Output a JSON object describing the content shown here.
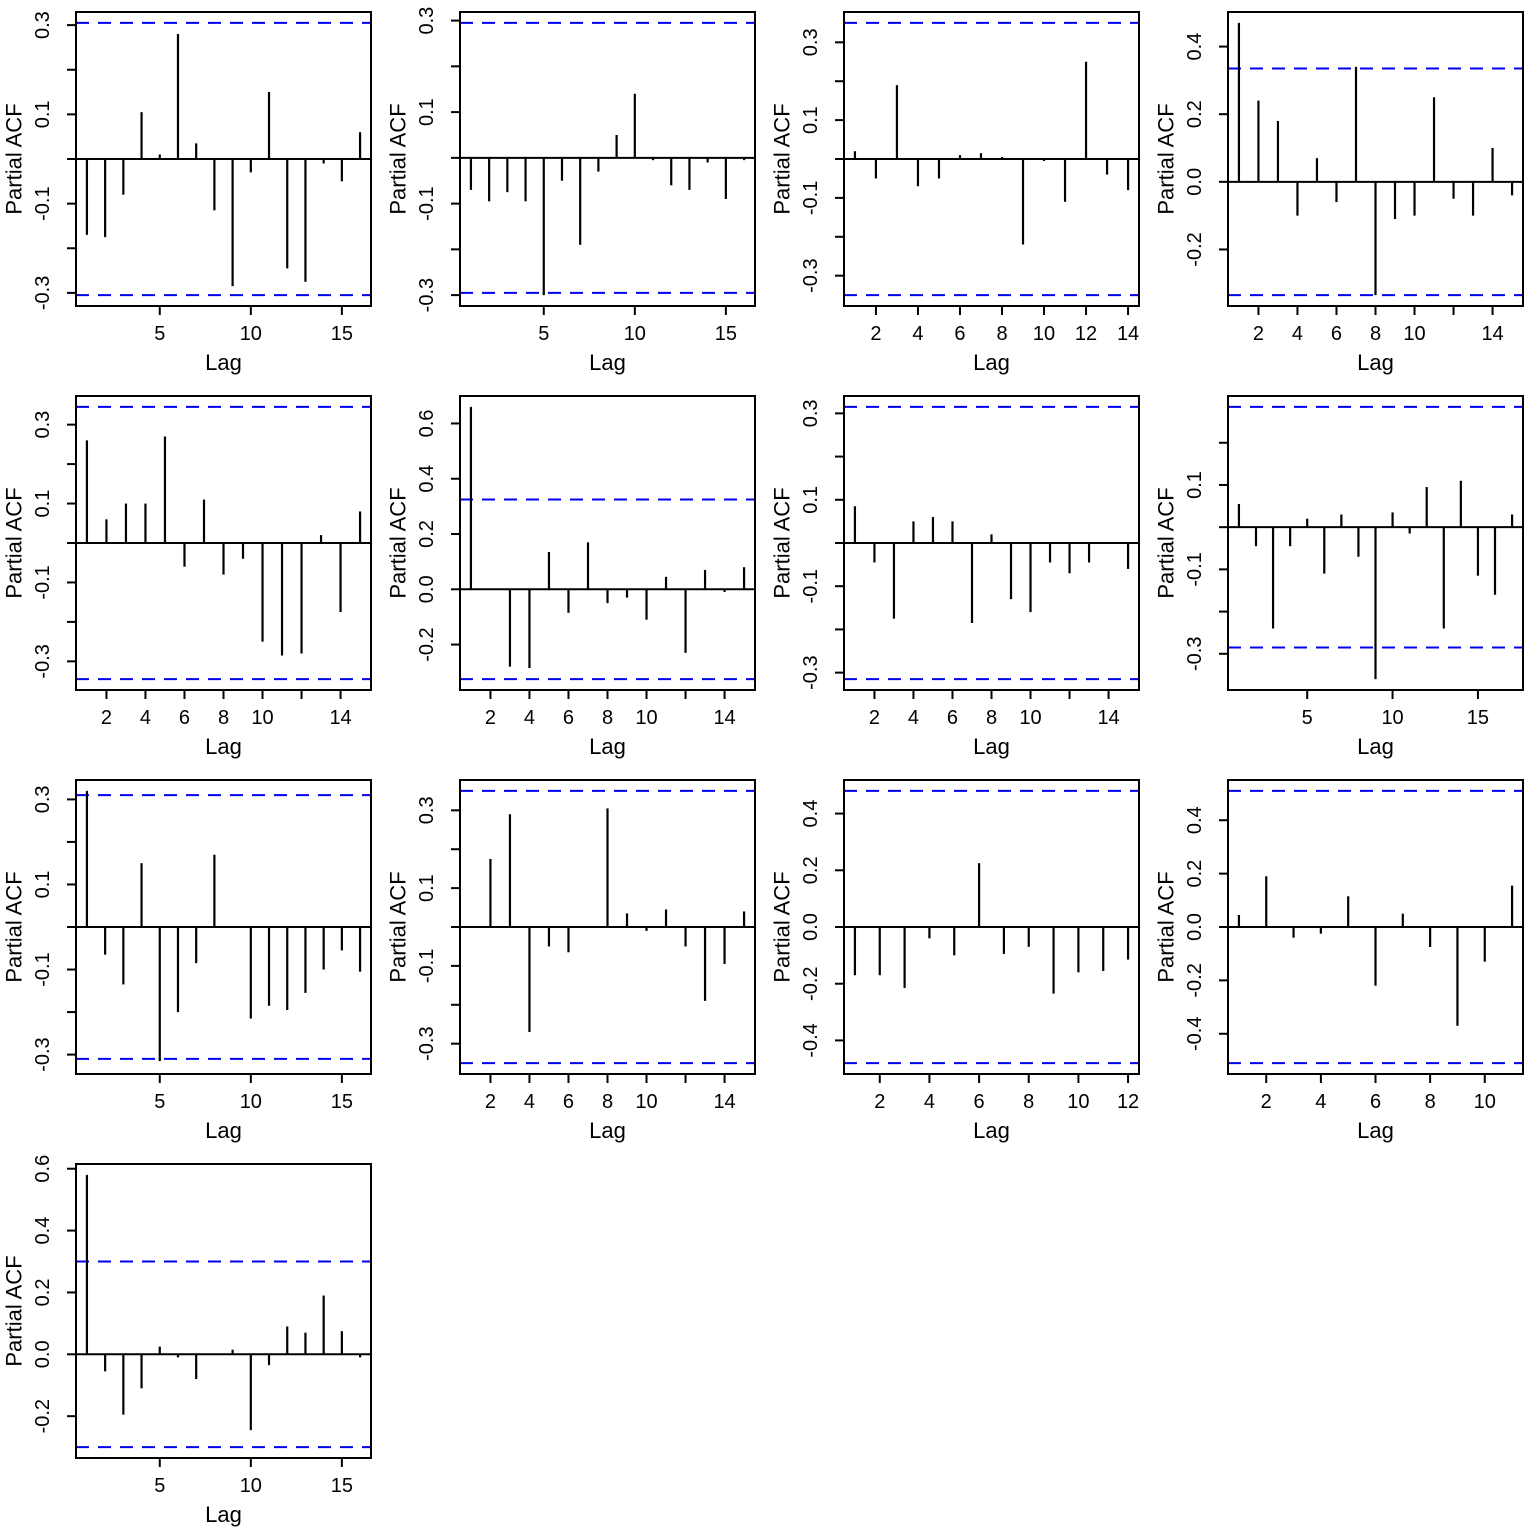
{
  "figure": {
    "background": "#ffffff",
    "bar_color": "#000000",
    "axis_color": "#000000",
    "text_color": "#000000",
    "band_color": "#0000EE",
    "band_style": "dashed"
  },
  "layout": {
    "rows": 4,
    "cols": 4,
    "panel_count": 13,
    "legend": "none",
    "grid": "off"
  },
  "chart_data": [
    {
      "type": "bar",
      "subtype": "pacf-lollipop",
      "title": "",
      "ylabel": "Partial ACF",
      "xlabel": "Lag",
      "conf_band": 0.305,
      "ylim": [
        -0.305,
        0.305
      ],
      "yticks": [
        0.3,
        0.2,
        0.1,
        0,
        -0.1,
        -0.2,
        -0.3
      ],
      "ytick_labels": [
        "0.3",
        "",
        "0.1",
        "",
        "-0.1",
        "",
        "-0.3"
      ],
      "xticks": [
        5,
        10,
        15
      ],
      "xtick_labels": [
        "5",
        "10",
        "15"
      ],
      "x": [
        1,
        2,
        3,
        4,
        5,
        6,
        7,
        8,
        9,
        10,
        11,
        12,
        13,
        14,
        15,
        16
      ],
      "values": [
        -0.17,
        -0.175,
        -0.08,
        0.105,
        0.01,
        0.28,
        0.035,
        -0.115,
        -0.285,
        -0.03,
        0.15,
        -0.245,
        -0.275,
        -0.01,
        -0.05,
        0.06
      ]
    },
    {
      "type": "bar",
      "subtype": "pacf-lollipop",
      "title": "",
      "ylabel": "Partial ACF",
      "xlabel": "Lag",
      "conf_band": 0.295,
      "ylim": [
        -0.3,
        0.295
      ],
      "yticks": [
        0.3,
        0.2,
        0.1,
        0,
        -0.1,
        -0.2,
        -0.3
      ],
      "ytick_labels": [
        "0.3",
        "",
        "0.1",
        "",
        "-0.1",
        "",
        "-0.3"
      ],
      "xticks": [
        5,
        10,
        15
      ],
      "xtick_labels": [
        "5",
        "10",
        "15"
      ],
      "x": [
        1,
        2,
        3,
        4,
        5,
        6,
        7,
        8,
        9,
        10,
        11,
        12,
        13,
        14,
        15,
        16
      ],
      "values": [
        -0.07,
        -0.095,
        -0.075,
        -0.095,
        -0.3,
        -0.05,
        -0.19,
        -0.03,
        0.05,
        0.14,
        -0.005,
        -0.06,
        -0.07,
        -0.01,
        -0.09,
        -0.005
      ]
    },
    {
      "type": "bar",
      "subtype": "pacf-lollipop",
      "title": "",
      "ylabel": "Partial ACF",
      "xlabel": "Lag",
      "conf_band": 0.35,
      "ylim": [
        -0.35,
        0.35
      ],
      "yticks": [
        0.3,
        0.2,
        0.1,
        0,
        -0.1,
        -0.2,
        -0.3
      ],
      "ytick_labels": [
        "0.3",
        "",
        "0.1",
        "",
        "-0.1",
        "",
        "-0.3"
      ],
      "xticks": [
        2,
        4,
        6,
        8,
        10,
        12,
        14
      ],
      "xtick_labels": [
        "2",
        "4",
        "6",
        "8",
        "10",
        "12",
        "14"
      ],
      "x": [
        1,
        2,
        3,
        4,
        5,
        6,
        7,
        8,
        9,
        10,
        11,
        12,
        13,
        14
      ],
      "values": [
        0.02,
        -0.05,
        0.19,
        -0.07,
        -0.05,
        0.01,
        0.015,
        0.005,
        -0.22,
        -0.005,
        -0.11,
        0.25,
        -0.04,
        -0.08
      ]
    },
    {
      "type": "bar",
      "subtype": "pacf-lollipop",
      "title": "",
      "ylabel": "Partial ACF",
      "xlabel": "Lag",
      "conf_band": 0.335,
      "ylim": [
        -0.335,
        0.47
      ],
      "yticks": [
        0.4,
        0.2,
        0.0,
        -0.2
      ],
      "ytick_labels": [
        "0.4",
        "0.2",
        "0.0",
        "-0.2"
      ],
      "xticks": [
        2,
        4,
        6,
        8,
        10,
        12,
        14
      ],
      "xtick_labels": [
        "2",
        "4",
        "6",
        "8",
        "10",
        "",
        "14"
      ],
      "x": [
        1,
        2,
        3,
        4,
        5,
        6,
        7,
        8,
        9,
        10,
        11,
        12,
        13,
        14,
        15
      ],
      "values": [
        0.47,
        0.24,
        0.18,
        -0.1,
        0.07,
        -0.06,
        0.34,
        -0.335,
        -0.11,
        -0.1,
        0.25,
        -0.05,
        -0.1,
        0.1,
        -0.04
      ]
    },
    {
      "type": "bar",
      "subtype": "pacf-lollipop",
      "title": "",
      "ylabel": "Partial ACF",
      "xlabel": "Lag",
      "conf_band": 0.345,
      "ylim": [
        -0.345,
        0.345
      ],
      "yticks": [
        0.3,
        0.2,
        0.1,
        0,
        -0.1,
        -0.2,
        -0.3
      ],
      "ytick_labels": [
        "0.3",
        "",
        "0.1",
        "",
        "-0.1",
        "",
        "-0.3"
      ],
      "xticks": [
        2,
        4,
        6,
        8,
        10,
        12,
        14
      ],
      "xtick_labels": [
        "2",
        "4",
        "6",
        "8",
        "10",
        "",
        "14"
      ],
      "x": [
        1,
        2,
        3,
        4,
        5,
        6,
        7,
        8,
        9,
        10,
        11,
        12,
        13,
        14,
        15
      ],
      "values": [
        0.26,
        0.06,
        0.1,
        0.1,
        0.27,
        -0.06,
        0.11,
        -0.08,
        -0.04,
        -0.25,
        -0.285,
        -0.28,
        0.02,
        -0.175,
        0.08
      ]
    },
    {
      "type": "bar",
      "subtype": "pacf-lollipop",
      "title": "",
      "ylabel": "Partial ACF",
      "xlabel": "Lag",
      "conf_band": 0.325,
      "ylim": [
        -0.325,
        0.66
      ],
      "yticks": [
        0.6,
        0.4,
        0.2,
        0.0,
        -0.2
      ],
      "ytick_labels": [
        "0.6",
        "0.4",
        "0.2",
        "0.0",
        "-0.2"
      ],
      "xticks": [
        2,
        4,
        6,
        8,
        10,
        12,
        14
      ],
      "xtick_labels": [
        "2",
        "4",
        "6",
        "8",
        "10",
        "",
        "14"
      ],
      "x": [
        1,
        2,
        3,
        4,
        5,
        6,
        7,
        8,
        9,
        10,
        11,
        12,
        13,
        14,
        15
      ],
      "values": [
        0.66,
        0,
        -0.28,
        -0.285,
        0.135,
        -0.085,
        0.17,
        -0.05,
        -0.03,
        -0.11,
        0.045,
        -0.23,
        0.07,
        -0.01,
        0.08
      ]
    },
    {
      "type": "bar",
      "subtype": "pacf-lollipop",
      "title": "",
      "ylabel": "Partial ACF",
      "xlabel": "Lag",
      "conf_band": 0.315,
      "ylim": [
        -0.315,
        0.315
      ],
      "yticks": [
        0.3,
        0.2,
        0.1,
        0,
        -0.1,
        -0.2,
        -0.3
      ],
      "ytick_labels": [
        "0.3",
        "",
        "0.1",
        "",
        "-0.1",
        "",
        "-0.3"
      ],
      "xticks": [
        2,
        4,
        6,
        8,
        10,
        12,
        14
      ],
      "xtick_labels": [
        "2",
        "4",
        "6",
        "8",
        "10",
        "",
        "14"
      ],
      "x": [
        1,
        2,
        3,
        4,
        5,
        6,
        7,
        8,
        9,
        10,
        11,
        12,
        13,
        14,
        15
      ],
      "values": [
        0.085,
        -0.045,
        -0.175,
        0.05,
        0.06,
        0.05,
        -0.185,
        0.02,
        -0.13,
        -0.16,
        -0.045,
        -0.07,
        -0.045,
        0,
        -0.06
      ]
    },
    {
      "type": "bar",
      "subtype": "pacf-lollipop",
      "title": "",
      "ylabel": "Partial ACF",
      "xlabel": "Lag",
      "conf_band": 0.285,
      "ylim": [
        -0.36,
        0.285
      ],
      "yticks": [
        0.2,
        0.1,
        0,
        -0.1,
        -0.2,
        -0.3
      ],
      "ytick_labels": [
        "",
        "0.1",
        "",
        "-0.1",
        "",
        "-0.3"
      ],
      "xticks": [
        5,
        10,
        15
      ],
      "xtick_labels": [
        "5",
        "10",
        "15"
      ],
      "x": [
        1,
        2,
        3,
        4,
        5,
        6,
        7,
        8,
        9,
        10,
        11,
        12,
        13,
        14,
        15,
        16,
        17
      ],
      "values": [
        0.055,
        -0.045,
        -0.24,
        -0.045,
        0.02,
        -0.11,
        0.03,
        -0.07,
        -0.36,
        0.035,
        -0.015,
        0.095,
        -0.24,
        0.11,
        -0.115,
        -0.16,
        0.03
      ]
    },
    {
      "type": "bar",
      "subtype": "pacf-lollipop",
      "title": "",
      "ylabel": "Partial ACF",
      "xlabel": "Lag",
      "conf_band": 0.31,
      "ylim": [
        -0.32,
        0.32
      ],
      "yticks": [
        0.3,
        0.2,
        0.1,
        0,
        -0.1,
        -0.2,
        -0.3
      ],
      "ytick_labels": [
        "0.3",
        "",
        "0.1",
        "",
        "-0.1",
        "",
        "-0.3"
      ],
      "xticks": [
        5,
        10,
        15
      ],
      "xtick_labels": [
        "5",
        "10",
        "15"
      ],
      "x": [
        1,
        2,
        3,
        4,
        5,
        6,
        7,
        8,
        9,
        10,
        11,
        12,
        13,
        14,
        15,
        16
      ],
      "values": [
        0.32,
        -0.065,
        -0.135,
        0.15,
        -0.315,
        -0.2,
        -0.085,
        0.17,
        0,
        -0.215,
        -0.185,
        -0.195,
        -0.155,
        -0.1,
        -0.055,
        -0.105
      ]
    },
    {
      "type": "bar",
      "subtype": "pacf-lollipop",
      "title": "",
      "ylabel": "Partial ACF",
      "xlabel": "Lag",
      "conf_band": 0.35,
      "ylim": [
        -0.35,
        0.35
      ],
      "yticks": [
        0.3,
        0.2,
        0.1,
        0,
        -0.1,
        -0.2,
        -0.3
      ],
      "ytick_labels": [
        "0.3",
        "",
        "0.1",
        "",
        "-0.1",
        "",
        "-0.3"
      ],
      "xticks": [
        2,
        4,
        6,
        8,
        10,
        12,
        14
      ],
      "xtick_labels": [
        "2",
        "4",
        "6",
        "8",
        "10",
        "",
        "14"
      ],
      "x": [
        1,
        2,
        3,
        4,
        5,
        6,
        7,
        8,
        9,
        10,
        11,
        12,
        13,
        14,
        15
      ],
      "values": [
        0,
        0.175,
        0.29,
        -0.27,
        -0.05,
        -0.065,
        0,
        0.305,
        0.035,
        -0.01,
        0.045,
        -0.05,
        -0.19,
        -0.095,
        0.04
      ]
    },
    {
      "type": "bar",
      "subtype": "pacf-lollipop",
      "title": "",
      "ylabel": "Partial ACF",
      "xlabel": "Lag",
      "conf_band": 0.48,
      "ylim": [
        -0.48,
        0.48
      ],
      "yticks": [
        0.4,
        0.2,
        0.0,
        -0.2,
        -0.4
      ],
      "ytick_labels": [
        "0.4",
        "0.2",
        "0.0",
        "-0.2",
        "-0.4"
      ],
      "xticks": [
        2,
        4,
        6,
        8,
        10,
        12
      ],
      "xtick_labels": [
        "2",
        "4",
        "6",
        "8",
        "10",
        "12"
      ],
      "x": [
        1,
        2,
        3,
        4,
        5,
        6,
        7,
        8,
        9,
        10,
        11,
        12
      ],
      "values": [
        -0.17,
        -0.17,
        -0.215,
        -0.04,
        -0.1,
        0.225,
        -0.095,
        -0.07,
        -0.235,
        -0.16,
        -0.155,
        -0.115
      ]
    },
    {
      "type": "bar",
      "subtype": "pacf-lollipop",
      "title": "",
      "ylabel": "Partial ACF",
      "xlabel": "Lag",
      "conf_band": 0.51,
      "ylim": [
        -0.51,
        0.51
      ],
      "yticks": [
        0.4,
        0.2,
        0.0,
        -0.2,
        -0.4
      ],
      "ytick_labels": [
        "0.4",
        "0.2",
        "0.0",
        "-0.2",
        "-0.4"
      ],
      "xticks": [
        2,
        4,
        6,
        8,
        10
      ],
      "xtick_labels": [
        "2",
        "4",
        "6",
        "8",
        "10"
      ],
      "x": [
        1,
        2,
        3,
        4,
        5,
        6,
        7,
        8,
        9,
        10,
        11
      ],
      "values": [
        0.045,
        0.19,
        -0.04,
        -0.025,
        0.115,
        -0.22,
        0.05,
        -0.075,
        -0.37,
        -0.13,
        0.155
      ]
    },
    {
      "type": "bar",
      "subtype": "pacf-lollipop",
      "title": "",
      "ylabel": "Partial ACF",
      "xlabel": "Lag",
      "conf_band": 0.3,
      "ylim": [
        -0.3,
        0.58
      ],
      "yticks": [
        0.6,
        0.4,
        0.2,
        0.0,
        -0.2
      ],
      "ytick_labels": [
        "0.6",
        "0.4",
        "0.2",
        "0.0",
        "-0.2"
      ],
      "xticks": [
        5,
        10,
        15
      ],
      "xtick_labels": [
        "5",
        "10",
        "15"
      ],
      "x": [
        1,
        2,
        3,
        4,
        5,
        6,
        7,
        8,
        9,
        10,
        11,
        12,
        13,
        14,
        15,
        16
      ],
      "values": [
        0.58,
        -0.055,
        -0.195,
        -0.11,
        0.025,
        -0.01,
        -0.08,
        0,
        0.015,
        -0.245,
        -0.035,
        0.09,
        0.07,
        0.19,
        0.075,
        -0.01
      ]
    }
  ]
}
